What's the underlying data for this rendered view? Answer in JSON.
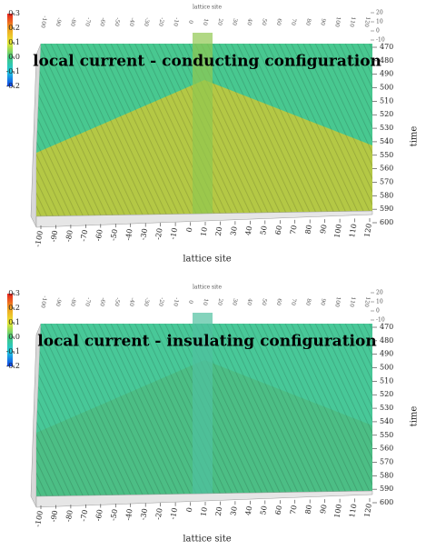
{
  "chart_data": [
    {
      "type": "surface",
      "title": "local current - conducting configuration",
      "xlabel": "lattice site",
      "ylabel": "time",
      "xlim": [
        -100,
        120
      ],
      "xticks": [
        -100,
        -90,
        -80,
        -70,
        -60,
        -50,
        -40,
        -30,
        -20,
        -10,
        0,
        10,
        20,
        30,
        40,
        50,
        60,
        70,
        80,
        90,
        100,
        110,
        120
      ],
      "ylim": [
        470,
        600
      ],
      "yticks": [
        470,
        480,
        490,
        500,
        510,
        520,
        530,
        540,
        550,
        560,
        570,
        580,
        590,
        600
      ],
      "zlim": [
        -10,
        20
      ],
      "zticks": [
        20,
        10,
        0,
        -10
      ],
      "clim": [
        -0.2,
        0.3
      ],
      "cticks": [
        0.3,
        0.2,
        0.1,
        {
          "value": 0,
          "label": "0.0"
        },
        -0.1,
        -0.2
      ]
    },
    {
      "type": "surface",
      "title": "local current - insulating configuration",
      "xlabel": "lattice site",
      "ylabel": "time",
      "xlim": [
        -100,
        120
      ],
      "xticks": [
        -100,
        -90,
        -80,
        -70,
        -60,
        -50,
        -40,
        -30,
        -20,
        -10,
        0,
        10,
        20,
        30,
        40,
        50,
        60,
        70,
        80,
        90,
        100,
        110,
        120
      ],
      "ylim": [
        470,
        600
      ],
      "yticks": [
        470,
        480,
        490,
        500,
        510,
        520,
        530,
        540,
        550,
        560,
        570,
        580,
        590,
        600
      ],
      "zlim": [
        -10,
        20
      ],
      "zticks": [
        20,
        10,
        0,
        -10
      ],
      "clim": [
        -0.2,
        0.3
      ],
      "cticks": [
        0.3,
        0.2,
        0.1,
        {
          "value": 0,
          "label": "0.0"
        },
        -0.1,
        -0.2
      ]
    }
  ]
}
